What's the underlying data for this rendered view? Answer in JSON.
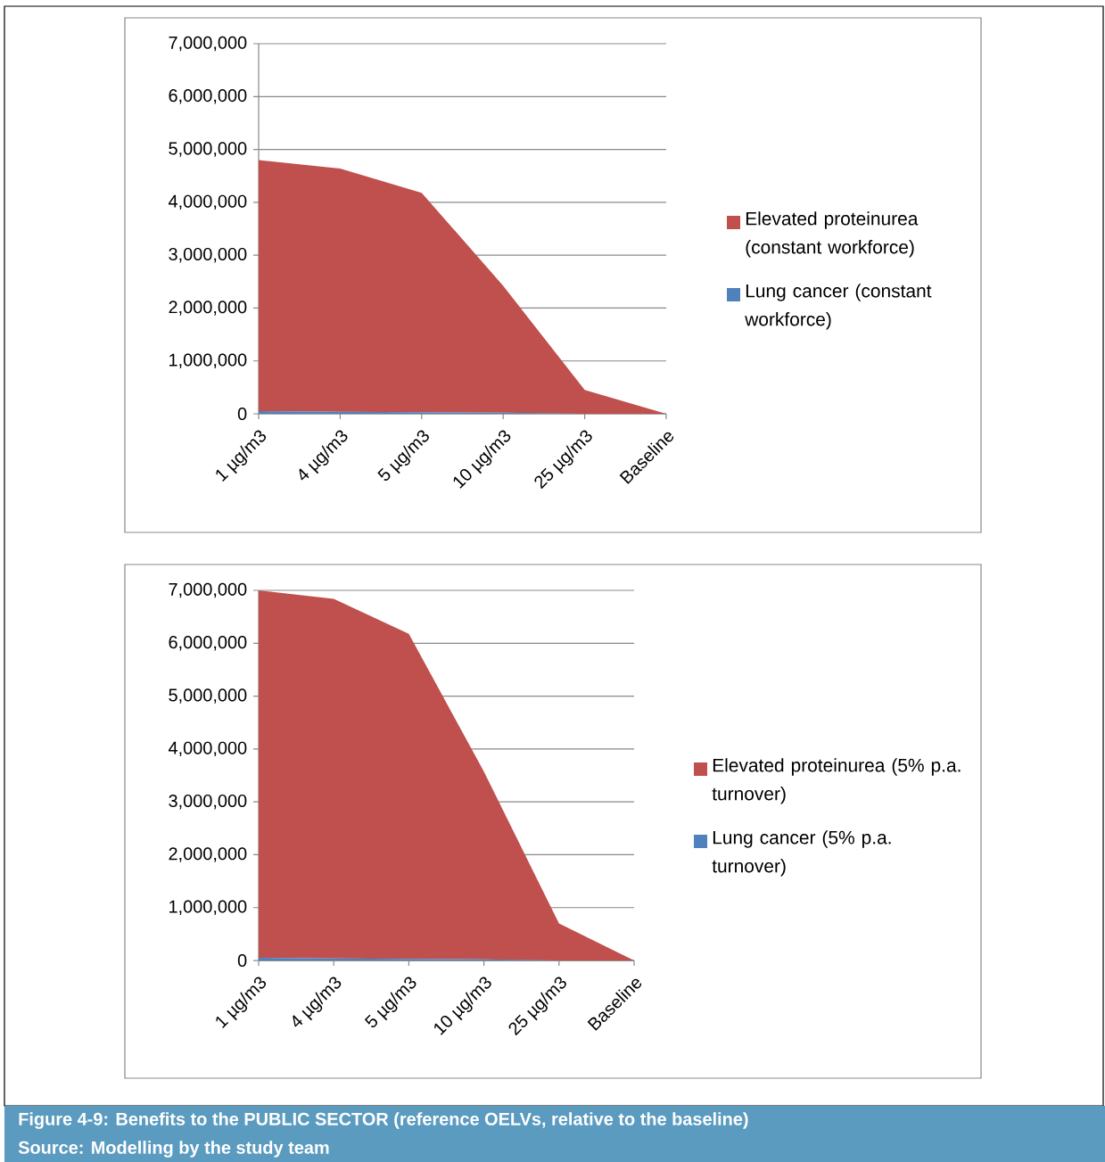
{
  "chart_data": [
    {
      "type": "area",
      "stacked": true,
      "grid": "y",
      "legend": "right",
      "categories": [
        "1 µg/m3",
        "4 µg/m3",
        "5 µg/m3",
        "10 µg/m3",
        "25 µg/m3",
        "Baseline"
      ],
      "ylim": [
        0,
        7000000
      ],
      "yticks": [
        {
          "value": 0,
          "label": "0"
        },
        {
          "value": 1000000,
          "label": "1,000,000"
        },
        {
          "value": 2000000,
          "label": "2,000,000"
        },
        {
          "value": 3000000,
          "label": "3,000,000"
        },
        {
          "value": 4000000,
          "label": "4,000,000"
        },
        {
          "value": 5000000,
          "label": "5,000,000"
        },
        {
          "value": 6000000,
          "label": "6,000,000"
        },
        {
          "value": 7000000,
          "label": "7,000,000"
        }
      ],
      "series": [
        {
          "name": "Lung cancer (constant workforce)",
          "color": "#4f81bd",
          "values": [
            50000,
            40000,
            30000,
            20000,
            0,
            0
          ]
        },
        {
          "name": "Elevated proteinurea (constant workforce)",
          "color": "#c0504d",
          "values": [
            4750000,
            4600000,
            4150000,
            2400000,
            450000,
            0
          ]
        }
      ]
    },
    {
      "type": "area",
      "stacked": true,
      "grid": "y",
      "legend": "right",
      "categories": [
        "1 µg/m3",
        "4 µg/m3",
        "5 µg/m3",
        "10 µg/m3",
        "25 µg/m3",
        "Baseline"
      ],
      "ylim": [
        0,
        7000000
      ],
      "yticks": [
        {
          "value": 0,
          "label": "0"
        },
        {
          "value": 1000000,
          "label": "1,000,000"
        },
        {
          "value": 2000000,
          "label": "2,000,000"
        },
        {
          "value": 3000000,
          "label": "3,000,000"
        },
        {
          "value": 4000000,
          "label": "4,000,000"
        },
        {
          "value": 5000000,
          "label": "5,000,000"
        },
        {
          "value": 6000000,
          "label": "6,000,000"
        },
        {
          "value": 7000000,
          "label": "7,000,000"
        }
      ],
      "series": [
        {
          "name": "Lung cancer (5% p.a. turnover)",
          "color": "#4f81bd",
          "values": [
            50000,
            40000,
            30000,
            20000,
            0,
            0
          ]
        },
        {
          "name": "Elevated proteinurea (5% p.a. turnover)",
          "color": "#c0504d",
          "values": [
            6950000,
            6800000,
            6150000,
            3550000,
            700000,
            0
          ]
        }
      ],
      "annotations": [
        "Figure 4-9:  Benefits to the PUBLIC SECTOR (reference OELVs, relative to the baseline)",
        "Source: Modelling by the study team"
      ]
    }
  ]
}
